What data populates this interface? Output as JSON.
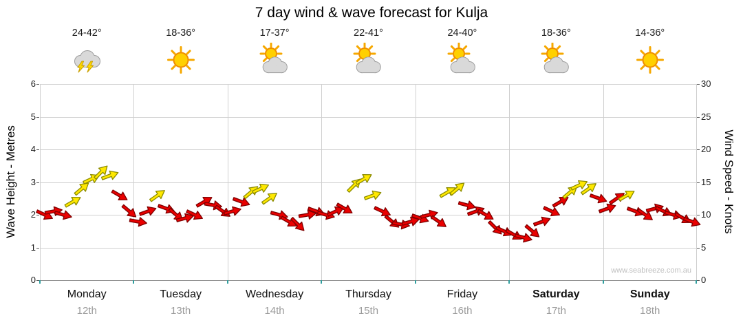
{
  "page": {
    "title": "7 day wind & wave forecast for Kulja",
    "watermark": "www.seabreeze.com.au"
  },
  "axes": {
    "left_label": "Wave Height - Metres",
    "right_label": "Wind Speed - Knots",
    "left_ticks": [
      "6",
      "5",
      "4",
      "3",
      "2",
      "1",
      "0"
    ],
    "right_ticks": [
      "30",
      "25",
      "20",
      "15",
      "10",
      "5",
      "0"
    ]
  },
  "days": [
    {
      "name": "Monday",
      "date": "12th",
      "temp": "24-42°",
      "icon": "storm-icon",
      "bold": false
    },
    {
      "name": "Tuesday",
      "date": "13th",
      "temp": "18-36°",
      "icon": "sun-icon",
      "bold": false
    },
    {
      "name": "Wednesday",
      "date": "14th",
      "temp": "17-37°",
      "icon": "sun-cloud-icon",
      "bold": false
    },
    {
      "name": "Thursday",
      "date": "15th",
      "temp": "22-41°",
      "icon": "sun-cloud-icon",
      "bold": false
    },
    {
      "name": "Friday",
      "date": "16th",
      "temp": "24-40°",
      "icon": "sun-cloud-icon",
      "bold": false
    },
    {
      "name": "Saturday",
      "date": "17th",
      "temp": "18-36°",
      "icon": "sun-cloud-icon",
      "bold": true
    },
    {
      "name": "Sunday",
      "date": "18th",
      "temp": "14-36°",
      "icon": "sun-icon",
      "bold": true
    }
  ],
  "chart_data": {
    "type": "scatter",
    "title": "7 day wind & wave forecast for Kulja",
    "x_categories": [
      "Monday 12th",
      "Tuesday 13th",
      "Wednesday 14th",
      "Thursday 15th",
      "Friday 16th",
      "Saturday 17th",
      "Sunday 18th"
    ],
    "y_left": {
      "label": "Wave Height - Metres",
      "min": 0,
      "max": 6
    },
    "y_right": {
      "label": "Wind Speed - Knots",
      "min": 0,
      "max": 30
    },
    "grid": true,
    "legend": "none",
    "arrow_colors": {
      "red": "#ea0000",
      "red_outline": "#7f0000",
      "yellow": "#ffe800",
      "yellow_outline": "#8c8c00"
    },
    "wind_arrows": [
      {
        "day": "Monday",
        "knots": [
          10,
          10.5,
          10,
          12,
          14,
          15.5,
          16.5,
          16,
          13,
          10.5
        ],
        "colors": [
          "red",
          "red",
          "red",
          "yellow",
          "yellow",
          "yellow",
          "yellow",
          "yellow",
          "red",
          "red"
        ],
        "dirs_deg": [
          25,
          -10,
          15,
          -30,
          -40,
          -25,
          -45,
          -20,
          30,
          40
        ]
      },
      {
        "day": "Tuesday",
        "knots": [
          9,
          10.5,
          13,
          11,
          10,
          9.5,
          10,
          12,
          11.5,
          10.5
        ],
        "colors": [
          "red",
          "red",
          "yellow",
          "red",
          "red",
          "red",
          "red",
          "red",
          "red",
          "red"
        ],
        "dirs_deg": [
          10,
          -20,
          -35,
          20,
          40,
          -15,
          25,
          -30,
          10,
          35
        ]
      },
      {
        "day": "Wednesday",
        "knots": [
          10.5,
          12,
          13.5,
          14,
          12.5,
          10,
          9,
          8.5,
          10,
          10.5
        ],
        "colors": [
          "red",
          "red",
          "yellow",
          "yellow",
          "yellow",
          "red",
          "red",
          "red",
          "red",
          "red"
        ],
        "dirs_deg": [
          -15,
          20,
          -40,
          -25,
          -35,
          15,
          30,
          45,
          -10,
          20
        ]
      },
      {
        "day": "Thursday",
        "knots": [
          10,
          10.5,
          11,
          14.5,
          15.5,
          13,
          10.5,
          9,
          8.5,
          9
        ],
        "colors": [
          "red",
          "red",
          "red",
          "yellow",
          "yellow",
          "yellow",
          "red",
          "red",
          "red",
          "red"
        ],
        "dirs_deg": [
          15,
          -25,
          30,
          -45,
          -30,
          -20,
          25,
          40,
          10,
          -15
        ]
      },
      {
        "day": "Friday",
        "knots": [
          9.5,
          10,
          9,
          13.5,
          14,
          11.5,
          10.5,
          10,
          8,
          7.5
        ],
        "colors": [
          "red",
          "red",
          "red",
          "yellow",
          "yellow",
          "red",
          "red",
          "red",
          "red",
          "red"
        ],
        "dirs_deg": [
          20,
          -15,
          35,
          -30,
          -40,
          15,
          -20,
          30,
          45,
          25
        ]
      },
      {
        "day": "Saturday",
        "knots": [
          7,
          6.5,
          7.5,
          9,
          10.5,
          12,
          13.5,
          14.5,
          14,
          12.5
        ],
        "colors": [
          "red",
          "red",
          "red",
          "red",
          "red",
          "red",
          "yellow",
          "yellow",
          "yellow",
          "red"
        ],
        "dirs_deg": [
          30,
          15,
          40,
          -20,
          25,
          -30,
          -40,
          -25,
          -35,
          20
        ]
      },
      {
        "day": "Sunday",
        "knots": [
          11,
          12.5,
          13,
          10.5,
          10,
          11,
          10.5,
          10,
          9.5,
          9
        ],
        "colors": [
          "red",
          "red",
          "yellow",
          "red",
          "red",
          "red",
          "red",
          "red",
          "red",
          "red"
        ],
        "dirs_deg": [
          -20,
          -35,
          -30,
          20,
          35,
          -15,
          25,
          15,
          30,
          20
        ]
      }
    ]
  }
}
